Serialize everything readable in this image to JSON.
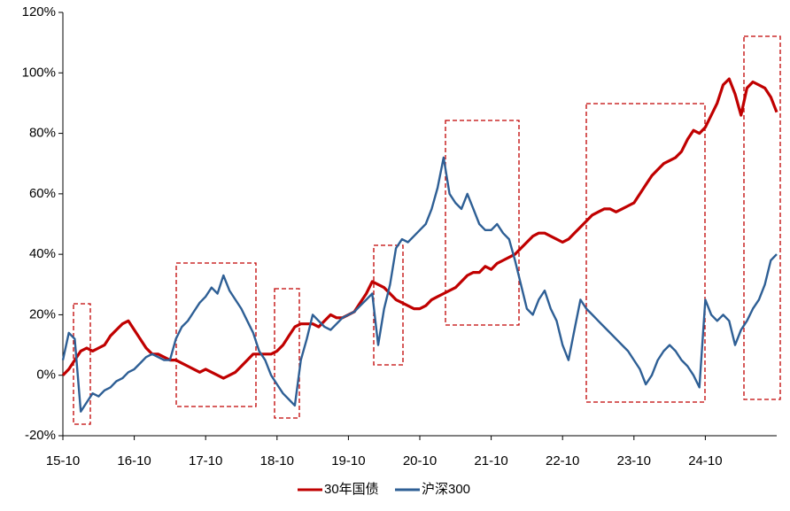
{
  "chart_data": {
    "type": "line",
    "categories": [
      "15-10",
      null,
      null,
      null,
      null,
      null,
      null,
      null,
      null,
      null,
      null,
      null,
      "16-10",
      null,
      null,
      null,
      null,
      null,
      null,
      null,
      null,
      null,
      null,
      null,
      "17-10",
      null,
      null,
      null,
      null,
      null,
      null,
      null,
      null,
      null,
      null,
      null,
      "18-10",
      null,
      null,
      null,
      null,
      null,
      null,
      null,
      null,
      null,
      null,
      null,
      "19-10",
      null,
      null,
      null,
      null,
      null,
      null,
      null,
      null,
      null,
      null,
      null,
      "20-10",
      null,
      null,
      null,
      null,
      null,
      null,
      null,
      null,
      null,
      null,
      null,
      "21-10",
      null,
      null,
      null,
      null,
      null,
      null,
      null,
      null,
      null,
      null,
      null,
      "22-10",
      null,
      null,
      null,
      null,
      null,
      null,
      null,
      null,
      null,
      null,
      null,
      "23-10",
      null,
      null,
      null,
      null,
      null,
      null,
      null,
      null,
      null,
      null,
      null,
      "24-10",
      null,
      null,
      null,
      null,
      null,
      null,
      null,
      null,
      null,
      null,
      null,
      null
    ],
    "series": [
      {
        "name": "30年国债",
        "color": "#c00000",
        "values": [
          0,
          2,
          5,
          8,
          9,
          8,
          9,
          10,
          13,
          15,
          17,
          18,
          15,
          12,
          9,
          7,
          7,
          6,
          5,
          5,
          4,
          3,
          2,
          1,
          2,
          1,
          0,
          -1,
          0,
          1,
          3,
          5,
          7,
          7,
          7,
          7,
          8,
          10,
          13,
          16,
          17,
          17,
          17,
          16,
          18,
          20,
          19,
          19,
          20,
          21,
          24,
          27,
          31,
          30,
          29,
          27,
          25,
          24,
          23,
          22,
          22,
          23,
          25,
          26,
          27,
          28,
          29,
          31,
          33,
          34,
          34,
          36,
          35,
          37,
          38,
          39,
          40,
          42,
          44,
          46,
          47,
          47,
          46,
          45,
          44,
          45,
          47,
          49,
          51,
          53,
          54,
          55,
          55,
          54,
          55,
          56,
          57,
          60,
          63,
          66,
          68,
          70,
          71,
          72,
          74,
          78,
          81,
          80,
          82,
          86,
          90,
          96,
          98,
          93,
          86,
          95,
          97,
          96,
          95,
          92,
          87
        ]
      },
      {
        "name": "沪深300",
        "color": "#2e5f95",
        "values": [
          5,
          14,
          12,
          -12,
          -9,
          -6,
          -7,
          -5,
          -4,
          -2,
          -1,
          1,
          2,
          4,
          6,
          7,
          6,
          5,
          5,
          12,
          16,
          18,
          21,
          24,
          26,
          29,
          27,
          33,
          28,
          25,
          22,
          18,
          14,
          8,
          5,
          0,
          -3,
          -6,
          -8,
          -10,
          5,
          12,
          20,
          18,
          16,
          15,
          17,
          19,
          20,
          21,
          23,
          25,
          27,
          10,
          22,
          30,
          42,
          45,
          44,
          46,
          48,
          50,
          55,
          62,
          72,
          60,
          57,
          55,
          60,
          55,
          50,
          48,
          48,
          50,
          47,
          45,
          38,
          30,
          22,
          20,
          25,
          28,
          22,
          18,
          10,
          5,
          15,
          25,
          22,
          20,
          18,
          16,
          14,
          12,
          10,
          8,
          5,
          2,
          -3,
          0,
          5,
          8,
          10,
          8,
          5,
          3,
          0,
          -4,
          25,
          20,
          18,
          20,
          18,
          10,
          15,
          18,
          22,
          25,
          30,
          38,
          40
        ]
      }
    ],
    "ylim": [
      -20,
      120
    ],
    "yticks": [
      {
        "value": -20,
        "label": "-20%"
      },
      {
        "value": 0,
        "label": "0%"
      },
      {
        "value": 20,
        "label": "20%"
      },
      {
        "value": 40,
        "label": "40%"
      },
      {
        "value": 60,
        "label": "60%"
      },
      {
        "value": 80,
        "label": "80%"
      },
      {
        "value": 100,
        "label": "100%"
      },
      {
        "value": 120,
        "label": "120%"
      }
    ],
    "grid": false,
    "legend": "bottom"
  }
}
